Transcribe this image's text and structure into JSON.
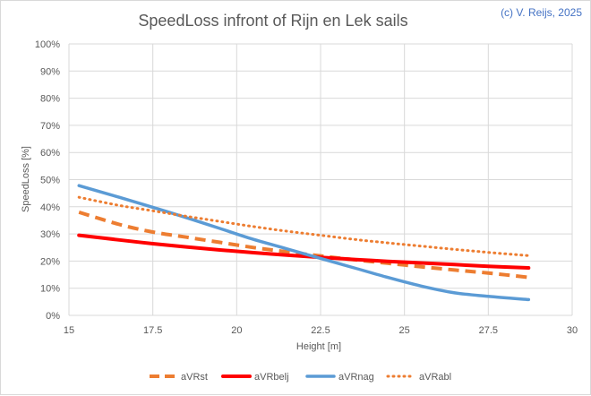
{
  "credit": "(c) V. Reijs, 2025",
  "chart_data": {
    "type": "line",
    "title": "SpeedLoss infront of Rijn en Lek sails",
    "xlabel": "Height [m]",
    "ylabel": "SpeedLoss [%]",
    "xlim": [
      15,
      30
    ],
    "ylim": [
      0,
      100
    ],
    "x_ticks": [
      "15",
      "17.5",
      "20",
      "22.5",
      "25",
      "27.5",
      "30"
    ],
    "y_ticks": [
      "0%",
      "10%",
      "20%",
      "30%",
      "40%",
      "50%",
      "60%",
      "70%",
      "80%",
      "90%",
      "100%"
    ],
    "grid": true,
    "legend": "bottom",
    "series": [
      {
        "name": "aVRst",
        "color": "#ed7d31",
        "style": "dashed",
        "x": [
          15.3,
          16.5,
          17.5,
          18.5,
          19.5,
          20.5,
          21.5,
          22.5,
          23.5,
          24.5,
          25.5,
          26.5,
          27.5,
          28.7
        ],
        "y": [
          38,
          33.5,
          30.7,
          28.8,
          26.9,
          25,
          23.4,
          21.9,
          20.5,
          19.2,
          17.9,
          16.7,
          15.6,
          14
        ]
      },
      {
        "name": "aVRbelj",
        "color": "#ff0000",
        "style": "solid",
        "x": [
          15.3,
          16.5,
          17.5,
          18.5,
          19.5,
          20.5,
          21.5,
          22.5,
          23.5,
          24.5,
          25.5,
          26.5,
          27.5,
          28.7
        ],
        "y": [
          29.5,
          27.8,
          26.4,
          25.2,
          24.1,
          23.1,
          22.2,
          21.4,
          20.6,
          19.9,
          19.3,
          18.7,
          18.1,
          17.5
        ]
      },
      {
        "name": "aVRnag",
        "color": "#5b9bd5",
        "style": "solid",
        "x": [
          15.3,
          16.5,
          17.5,
          18.5,
          19.5,
          20.5,
          21.5,
          22.5,
          23.5,
          24.5,
          25.5,
          26.5,
          27.5,
          28.7
        ],
        "y": [
          47.8,
          43.5,
          39.8,
          36,
          32,
          28,
          24.5,
          21,
          17.5,
          14,
          10.8,
          8.3,
          7,
          5.8
        ]
      },
      {
        "name": "aVRabl",
        "color": "#ed7d31",
        "style": "dotted",
        "x": [
          15.3,
          16.5,
          17.5,
          18.5,
          19.5,
          20.5,
          21.5,
          22.5,
          23.5,
          24.5,
          25.5,
          26.5,
          27.5,
          28.7
        ],
        "y": [
          43.5,
          40.5,
          38.5,
          36.5,
          34.6,
          32.7,
          31,
          29.5,
          28,
          26.7,
          25.5,
          24.3,
          23.2,
          22
        ]
      }
    ]
  }
}
